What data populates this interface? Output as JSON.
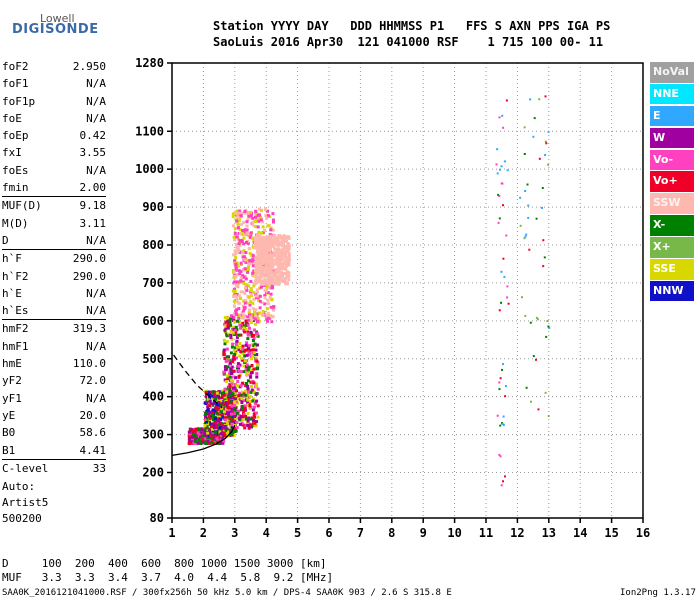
{
  "logo": {
    "line1": "Lowell",
    "line2": "DIGISONDE"
  },
  "header": {
    "row1": "Station YYYY DAY   DDD HHMMSS P1   FFS S AXN PPS IGA PS",
    "row2": "SaoLuis 2016 Apr30  121 041000 RSF    1 715 100 00- 11"
  },
  "parameters": [
    {
      "group": [
        {
          "label": "foF2",
          "value": "2.950"
        },
        {
          "label": "foF1",
          "value": "N/A"
        },
        {
          "label": "foF1p",
          "value": "N/A"
        },
        {
          "label": "foE",
          "value": "N/A"
        },
        {
          "label": "foEp",
          "value": "0.42"
        },
        {
          "label": "fxI",
          "value": "3.55"
        },
        {
          "label": "foEs",
          "value": "N/A"
        },
        {
          "label": "fmin",
          "value": "2.00"
        }
      ]
    },
    {
      "group": [
        {
          "label": "MUF(D)",
          "value": "9.18"
        },
        {
          "label": "M(D)",
          "value": "3.11"
        },
        {
          "label": "D",
          "value": "N/A"
        }
      ]
    },
    {
      "group": [
        {
          "label": "h`F",
          "value": "290.0"
        },
        {
          "label": "h`F2",
          "value": "290.0"
        },
        {
          "label": "h`E",
          "value": "N/A"
        },
        {
          "label": "h`Es",
          "value": "N/A"
        }
      ]
    },
    {
      "group": [
        {
          "label": "hmF2",
          "value": "319.3"
        },
        {
          "label": "hmF1",
          "value": "N/A"
        },
        {
          "label": "hmE",
          "value": "110.0"
        },
        {
          "label": "yF2",
          "value": "72.0"
        },
        {
          "label": "yF1",
          "value": "N/A"
        },
        {
          "label": "yE",
          "value": "20.0"
        },
        {
          "label": "B0",
          "value": "58.6"
        },
        {
          "label": "B1",
          "value": "4.41"
        }
      ]
    },
    {
      "group": [
        {
          "label": "C-level",
          "value": "33"
        }
      ]
    }
  ],
  "auto": {
    "line1": "Auto:",
    "line2": "Artist5",
    "line3": "500200"
  },
  "legend": [
    {
      "label": "NoVal",
      "color": "#a0a0a0"
    },
    {
      "label": "NNE",
      "color": "#00e8ff"
    },
    {
      "label": "E",
      "color": "#30a8ff"
    },
    {
      "label": "W",
      "color": "#a000a0"
    },
    {
      "label": "Vo-",
      "color": "#ff40c0"
    },
    {
      "label": "Vo+",
      "color": "#f00028"
    },
    {
      "label": "SSW",
      "color": "#ffb8b0"
    },
    {
      "label": "X-",
      "color": "#008000"
    },
    {
      "label": "X+",
      "color": "#78b848"
    },
    {
      "label": "SSE",
      "color": "#d8d800"
    },
    {
      "label": "NNW",
      "color": "#1010c8"
    }
  ],
  "muf_table": {
    "row1": "D     100  200  400  600  800 1000 1500 3000 [km]",
    "row2": "MUF   3.3  3.3  3.4  3.7  4.0  4.4  5.8  9.2 [MHz]"
  },
  "footer": {
    "left": "SAA0K_2016121041000.RSF / 300fx256h 50 kHz 5.0 km / DPS-4 SAA0K 903 / 2.6 S 315.8 E",
    "right": "Ion2Png 1.3.17"
  },
  "chart_data": {
    "type": "scatter",
    "title": "",
    "xlabel": "",
    "ylabel": "",
    "xlim": [
      1,
      16
    ],
    "ylim": [
      80,
      1280
    ],
    "x_ticks": [
      "1",
      "2",
      "3",
      "4",
      "5",
      "6",
      "7",
      "8",
      "9",
      "10",
      "11",
      "12",
      "13",
      "14",
      "15",
      "16"
    ],
    "y_ticks": [
      "80",
      "200",
      "300",
      "400",
      "500",
      "600",
      "700",
      "800",
      "900",
      "1000",
      "1100",
      "1280"
    ],
    "y_tick_values": [
      80,
      200,
      300,
      400,
      500,
      600,
      700,
      800,
      900,
      1000,
      1100,
      1280
    ],
    "grid": true,
    "series": [
      {
        "color": "#000000",
        "style": "solid",
        "x": [
          1.0,
          1.5,
          2.0,
          2.4,
          2.7,
          2.9,
          3.0
        ],
        "y": [
          245,
          252,
          262,
          275,
          290,
          308,
          325
        ]
      },
      {
        "color": "#000000",
        "style": "dashed",
        "x": [
          1.05,
          1.4,
          1.8,
          2.2,
          2.6
        ],
        "y": [
          510,
          470,
          430,
          400,
          370
        ]
      }
    ],
    "echo_regions": [
      {
        "x": [
          1.5,
          2.6
        ],
        "y": [
          280,
          320
        ],
        "colors": [
          "#f00028",
          "#a000a0",
          "#008000",
          "#ff40c0"
        ]
      },
      {
        "x": [
          2.0,
          3.0
        ],
        "y": [
          300,
          420
        ],
        "colors": [
          "#f00028",
          "#a000a0",
          "#008000",
          "#d8d800",
          "#1010c8"
        ]
      },
      {
        "x": [
          2.6,
          3.7
        ],
        "y": [
          320,
          620
        ],
        "colors": [
          "#d8d800",
          "#f00028",
          "#a000a0",
          "#008000",
          "#ff40c0"
        ]
      },
      {
        "x": [
          2.9,
          4.2
        ],
        "y": [
          600,
          900
        ],
        "colors": [
          "#ffb8b0",
          "#d8d800",
          "#ff40c0"
        ]
      },
      {
        "x": [
          3.6,
          4.7
        ],
        "y": [
          700,
          830
        ],
        "colors": [
          "#ffb8b0"
        ]
      },
      {
        "x": [
          11.3,
          11.7
        ],
        "y": [
          150,
          1200
        ],
        "colors": [
          "#008000",
          "#f00028",
          "#ff40c0",
          "#30a8ff"
        ]
      },
      {
        "x": [
          12.0,
          13.0
        ],
        "y": [
          350,
          1200
        ],
        "colors": [
          "#008000",
          "#78b848",
          "#f00028",
          "#30a8ff"
        ]
      }
    ]
  }
}
